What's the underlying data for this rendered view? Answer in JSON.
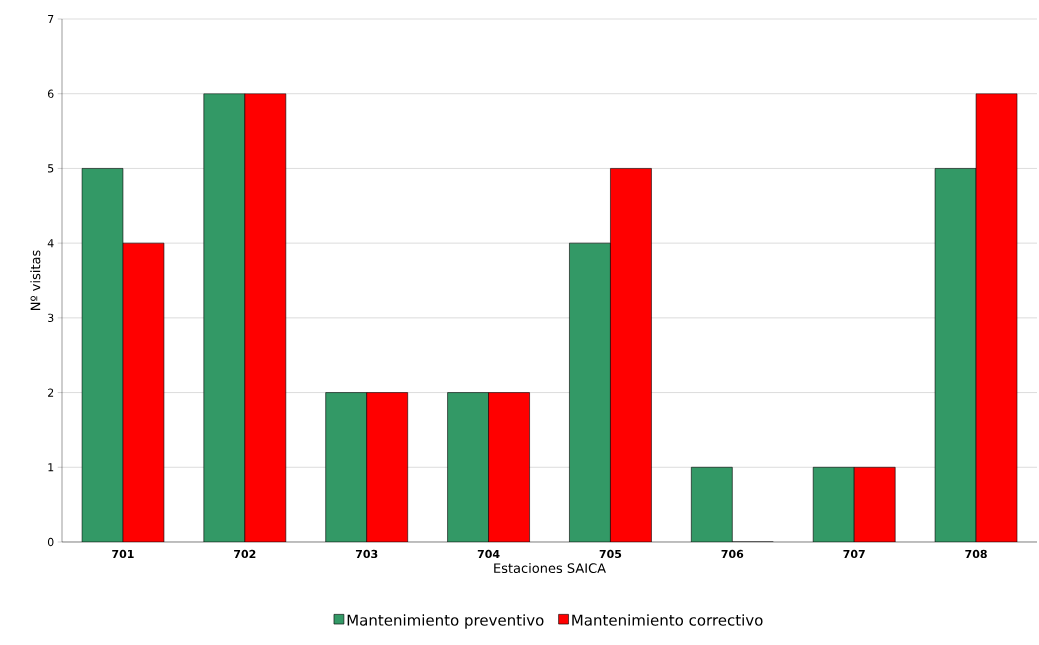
{
  "chart_data": {
    "type": "bar",
    "xlabel": "Estaciones SAICA",
    "ylabel": "Nº visitas",
    "categories": [
      "701",
      "702",
      "703",
      "704",
      "705",
      "706",
      "707",
      "708"
    ],
    "series": [
      {
        "name": "Mantenimiento preventivo",
        "color": "#339966",
        "values": [
          5,
          6,
          2,
          2,
          4,
          1,
          1,
          5
        ]
      },
      {
        "name": "Mantenimiento correctivo",
        "color": "#ff0000",
        "values": [
          4,
          6,
          2,
          2,
          5,
          0,
          1,
          6
        ]
      }
    ],
    "ylim": [
      0,
      7
    ],
    "yticks": [
      0,
      1,
      2,
      3,
      4,
      5,
      6,
      7
    ],
    "grid": "y",
    "legend": "bottom"
  }
}
